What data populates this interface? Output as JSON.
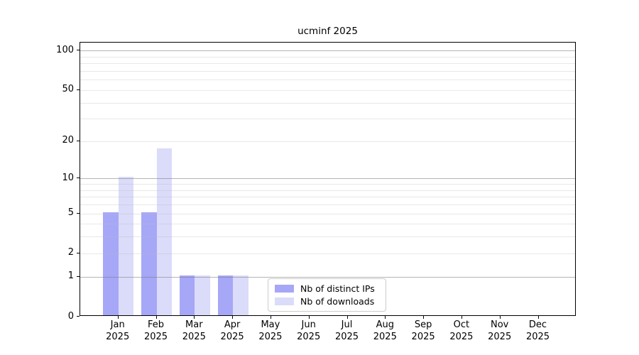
{
  "chart_data": {
    "type": "bar",
    "title": "ucminf 2025",
    "categories": [
      "Jan 2025",
      "Feb 2025",
      "Mar 2025",
      "Apr 2025",
      "May 2025",
      "Jun 2025",
      "Jul 2025",
      "Aug 2025",
      "Sep 2025",
      "Oct 2025",
      "Nov 2025",
      "Dec 2025"
    ],
    "x_tick_lines": [
      {
        "month": "Jan",
        "year": "2025"
      },
      {
        "month": "Feb",
        "year": "2025"
      },
      {
        "month": "Mar",
        "year": "2025"
      },
      {
        "month": "Apr",
        "year": "2025"
      },
      {
        "month": "May",
        "year": "2025"
      },
      {
        "month": "Jun",
        "year": "2025"
      },
      {
        "month": "Jul",
        "year": "2025"
      },
      {
        "month": "Aug",
        "year": "2025"
      },
      {
        "month": "Sep",
        "year": "2025"
      },
      {
        "month": "Oct",
        "year": "2025"
      },
      {
        "month": "Nov",
        "year": "2025"
      },
      {
        "month": "Dec",
        "year": "2025"
      }
    ],
    "series": [
      {
        "name": "Nb of distinct IPs",
        "color": "#a7a7f7",
        "values": [
          5,
          5,
          1,
          1,
          0,
          0,
          0,
          0,
          0,
          0,
          0,
          0
        ]
      },
      {
        "name": "Nb of downloads",
        "color": "#dbdbfa",
        "values": [
          10,
          17,
          1,
          1,
          0,
          0,
          0,
          0,
          0,
          0,
          0,
          0
        ]
      }
    ],
    "y_scale": "log1p",
    "ylim": [
      0,
      115
    ],
    "y_ticks": [
      100,
      50,
      20,
      10,
      5,
      2,
      1,
      0
    ],
    "grid_major": [
      1,
      10,
      100
    ],
    "grid_minor": [
      2,
      3,
      4,
      5,
      6,
      7,
      8,
      9,
      20,
      30,
      40,
      50,
      60,
      70,
      80,
      90
    ],
    "grid": "on",
    "legend_position": "lower-center",
    "xlabel": "",
    "ylabel": ""
  }
}
